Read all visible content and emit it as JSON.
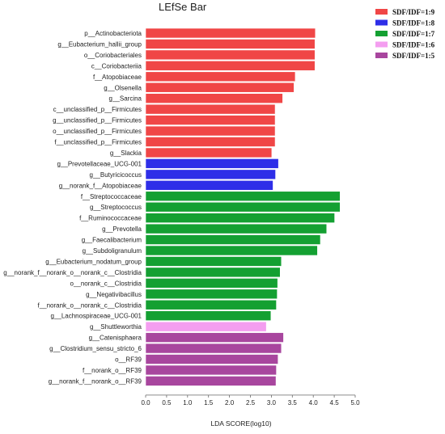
{
  "chart_data": {
    "type": "bar",
    "orientation": "horizontal",
    "title": "LEfSe Bar",
    "xlabel": "LDA SCORE(log10)",
    "ylabel": "",
    "xlim": [
      0,
      5
    ],
    "xticks": [
      "0.0",
      "0.5",
      "1.0",
      "1.5",
      "2.0",
      "2.5",
      "3.0",
      "3.5",
      "4.0",
      "4.5",
      "5.0"
    ],
    "legend_position": "top-right",
    "series": [
      {
        "name": "SDF/IDF=1:9",
        "color": "#f04646"
      },
      {
        "name": "SDF/IDF=1:8",
        "color": "#2e2ee8"
      },
      {
        "name": "SDF/IDF=1:7",
        "color": "#14a032"
      },
      {
        "name": "SDF/IDF=1:6",
        "color": "#f49ef0"
      },
      {
        "name": "SDF/IDF=1:5",
        "color": "#a8469e"
      }
    ],
    "bars": [
      {
        "label": "p__Actinobacteriota",
        "value": 4.05,
        "group": 0
      },
      {
        "label": "g__Eubacterium_hallii_group",
        "value": 4.04,
        "group": 0
      },
      {
        "label": "o__Coriobacteriales",
        "value": 4.04,
        "group": 0
      },
      {
        "label": "c__Coriobacteriia",
        "value": 4.04,
        "group": 0
      },
      {
        "label": "f__Atopobiaceae",
        "value": 3.57,
        "group": 0
      },
      {
        "label": "g__Olsenella",
        "value": 3.54,
        "group": 0
      },
      {
        "label": "g__Sarcina",
        "value": 3.27,
        "group": 0
      },
      {
        "label": "c__unclassified_p__Firmicutes",
        "value": 3.09,
        "group": 0
      },
      {
        "label": "g__unclassified_p__Firmicutes",
        "value": 3.09,
        "group": 0
      },
      {
        "label": "o__unclassified_p__Firmicutes",
        "value": 3.09,
        "group": 0
      },
      {
        "label": "f__unclassified_p__Firmicutes",
        "value": 3.09,
        "group": 0
      },
      {
        "label": "g__Slackia",
        "value": 3.01,
        "group": 0
      },
      {
        "label": "g__Prevotellaceae_UCG-001",
        "value": 3.17,
        "group": 1
      },
      {
        "label": "g__Butyricicoccus",
        "value": 3.1,
        "group": 1
      },
      {
        "label": "g__norank_f__Atopobiaceae",
        "value": 3.04,
        "group": 1
      },
      {
        "label": "f__Streptococcaceae",
        "value": 4.64,
        "group": 2
      },
      {
        "label": "g__Streptococcus",
        "value": 4.64,
        "group": 2
      },
      {
        "label": "f__Ruminococcaceae",
        "value": 4.51,
        "group": 2
      },
      {
        "label": "g__Prevotella",
        "value": 4.32,
        "group": 2
      },
      {
        "label": "g__Faecalibacterium",
        "value": 4.17,
        "group": 2
      },
      {
        "label": "g__Subdoligranulum",
        "value": 4.1,
        "group": 2
      },
      {
        "label": "g__Eubacterium_nodatum_group",
        "value": 3.24,
        "group": 2
      },
      {
        "label": "g__norank_f__norank_o__norank_c__Clostridia",
        "value": 3.21,
        "group": 2
      },
      {
        "label": "o__norank_c__Clostridia",
        "value": 3.15,
        "group": 2
      },
      {
        "label": "g__Negativibacillus",
        "value": 3.14,
        "group": 2
      },
      {
        "label": "f__norank_o__norank_c__Clostridia",
        "value": 3.12,
        "group": 2
      },
      {
        "label": "g__Lachnospiraceae_UCG-001",
        "value": 2.99,
        "group": 2
      },
      {
        "label": "g__Shuttleworthia",
        "value": 2.88,
        "group": 3
      },
      {
        "label": "g__Catenisphaera",
        "value": 3.29,
        "group": 4
      },
      {
        "label": "g__Clostridium_sensu_stricto_6",
        "value": 3.24,
        "group": 4
      },
      {
        "label": "o__RF39",
        "value": 3.16,
        "group": 4
      },
      {
        "label": "f__norank_o__RF39",
        "value": 3.12,
        "group": 4
      },
      {
        "label": "g__norank_f__norank_o__RF39",
        "value": 3.11,
        "group": 4
      }
    ]
  }
}
